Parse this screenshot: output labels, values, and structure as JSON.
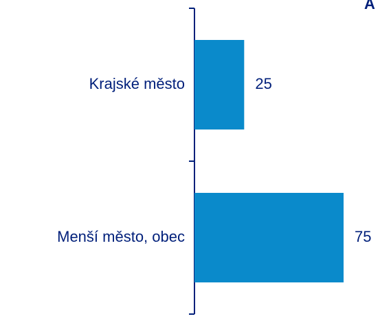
{
  "chart_data": {
    "type": "bar",
    "orientation": "horizontal",
    "categories": [
      "Krajské město",
      "Menší město, obec"
    ],
    "values": [
      25,
      75
    ],
    "data_labels": [
      "25",
      "75"
    ],
    "xlim": [
      0,
      75
    ],
    "grid": false,
    "legend": "none"
  },
  "corner_text": "A",
  "colors": {
    "bar": "#0A8ACB",
    "axis": "#001F7A",
    "text": "#001F7A",
    "background": "#FFFFFF"
  }
}
